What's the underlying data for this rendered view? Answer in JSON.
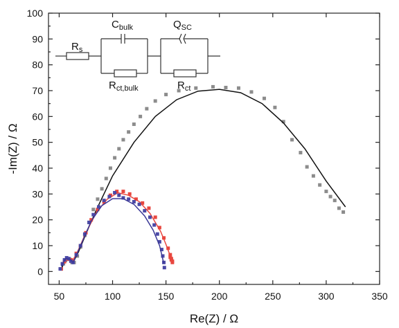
{
  "chart_data": {
    "type": "scatter",
    "xlabel": "Re(Z) / Ω",
    "ylabel": "-Im(Z) / Ω",
    "xlim": [
      40,
      350
    ],
    "ylim": [
      -5,
      100
    ],
    "x_ticks": [
      50,
      100,
      150,
      200,
      250,
      300,
      350
    ],
    "y_ticks": [
      0,
      10,
      20,
      30,
      40,
      50,
      60,
      70,
      80,
      90,
      100
    ],
    "grid": false,
    "series": [
      {
        "color": "#8c8c8c",
        "points": [
          [
            52,
            1
          ],
          [
            54,
            3
          ],
          [
            56,
            4.3
          ],
          [
            58,
            4.8
          ],
          [
            60,
            4.7
          ],
          [
            62,
            3.5
          ],
          [
            64,
            3.5
          ],
          [
            67,
            6
          ],
          [
            70,
            9.5
          ],
          [
            74,
            14
          ],
          [
            78,
            19
          ],
          [
            82,
            24
          ],
          [
            86,
            28
          ],
          [
            90,
            32
          ],
          [
            94,
            36
          ],
          [
            98,
            40
          ],
          [
            102,
            44
          ],
          [
            106,
            47.5
          ],
          [
            110,
            51
          ],
          [
            115,
            54
          ],
          [
            120,
            57
          ],
          [
            126,
            60
          ],
          [
            132,
            63
          ],
          [
            140,
            66
          ],
          [
            150,
            68.5
          ],
          [
            162,
            70
          ],
          [
            178,
            71
          ],
          [
            194,
            71.5
          ],
          [
            206,
            71.2
          ],
          [
            218,
            71
          ],
          [
            230,
            69.5
          ],
          [
            242,
            67
          ],
          [
            252,
            63.5
          ],
          [
            260,
            58
          ],
          [
            268,
            51
          ],
          [
            276,
            46
          ],
          [
            282,
            40.5
          ],
          [
            288,
            37
          ],
          [
            294,
            33.5
          ],
          [
            300,
            31
          ],
          [
            304,
            29
          ],
          [
            308,
            27.5
          ],
          [
            312,
            24.5
          ],
          [
            316,
            23
          ]
        ],
        "fit": [
          [
            52,
            1
          ],
          [
            56,
            4.6
          ],
          [
            60,
            4.8
          ],
          [
            63,
            3.5
          ],
          [
            68,
            7.5
          ],
          [
            75,
            14.5
          ],
          [
            85,
            24
          ],
          [
            100,
            37
          ],
          [
            120,
            50
          ],
          [
            140,
            60
          ],
          [
            160,
            66.5
          ],
          [
            180,
            69.8
          ],
          [
            200,
            70.5
          ],
          [
            220,
            69.2
          ],
          [
            240,
            65
          ],
          [
            260,
            57.5
          ],
          [
            280,
            47.5
          ],
          [
            300,
            35
          ],
          [
            318,
            25
          ]
        ]
      },
      {
        "color": "#e8473f",
        "points": [
          [
            52,
            1
          ],
          [
            55,
            3.8
          ],
          [
            58,
            4.8
          ],
          [
            61,
            4.5
          ],
          [
            63,
            4
          ],
          [
            66,
            7
          ],
          [
            70,
            10
          ],
          [
            75,
            15
          ],
          [
            80,
            20
          ],
          [
            86,
            24
          ],
          [
            92,
            27
          ],
          [
            98,
            29.5
          ],
          [
            104,
            31
          ],
          [
            110,
            31
          ],
          [
            116,
            30
          ],
          [
            122,
            28
          ],
          [
            128,
            26.5
          ],
          [
            134,
            24.5
          ],
          [
            140,
            21
          ],
          [
            144,
            17
          ],
          [
            148,
            13
          ],
          [
            152,
            9
          ],
          [
            154,
            6.5
          ],
          [
            155,
            5
          ],
          [
            156,
            4
          ],
          [
            156,
            3.5
          ],
          [
            155,
            4.5
          ],
          [
            154,
            5.5
          ]
        ],
        "fit": [
          [
            54,
            3
          ],
          [
            58,
            4.8
          ],
          [
            62,
            4
          ],
          [
            66,
            6.5
          ],
          [
            75,
            15
          ],
          [
            85,
            23
          ],
          [
            95,
            28
          ],
          [
            105,
            30.5
          ],
          [
            115,
            29.5
          ],
          [
            125,
            27
          ],
          [
            135,
            22.5
          ],
          [
            145,
            15.5
          ],
          [
            150,
            10.5
          ],
          [
            154,
            6
          ],
          [
            156,
            4
          ]
        ]
      },
      {
        "color": "#4b49a6",
        "points": [
          [
            51,
            1
          ],
          [
            53,
            3
          ],
          [
            55,
            4.5
          ],
          [
            57,
            5.3
          ],
          [
            59,
            5
          ],
          [
            61,
            4
          ],
          [
            63,
            3.5
          ],
          [
            66,
            6.5
          ],
          [
            70,
            10
          ],
          [
            74,
            14.5
          ],
          [
            78,
            19
          ],
          [
            82,
            22
          ],
          [
            87,
            25
          ],
          [
            92,
            27.5
          ],
          [
            97,
            29
          ],
          [
            102,
            30.5
          ],
          [
            106,
            29.5
          ],
          [
            110,
            28.5
          ],
          [
            115,
            28
          ],
          [
            120,
            27
          ],
          [
            125,
            26
          ],
          [
            130,
            23.5
          ],
          [
            135,
            21
          ],
          [
            139,
            18
          ],
          [
            142,
            14.5
          ],
          [
            144,
            11.5
          ],
          [
            146,
            8.5
          ],
          [
            147,
            6
          ],
          [
            148,
            3.5
          ],
          [
            148.5,
            1.5
          ]
        ],
        "fit": [
          [
            52,
            2
          ],
          [
            56,
            5
          ],
          [
            60,
            4.8
          ],
          [
            63,
            3.5
          ],
          [
            70,
            10
          ],
          [
            80,
            19.5
          ],
          [
            90,
            25.5
          ],
          [
            100,
            28.2
          ],
          [
            110,
            28.2
          ],
          [
            120,
            26
          ],
          [
            130,
            21.5
          ],
          [
            138,
            16
          ],
          [
            144,
            10
          ],
          [
            148,
            3
          ]
        ]
      }
    ],
    "equivalent_circuit": {
      "labels": [
        "R",
        "C",
        "Q",
        "R",
        "R"
      ],
      "subscripts": [
        "s",
        "bulk",
        "SC",
        "ct,bulk",
        "ct"
      ]
    }
  }
}
